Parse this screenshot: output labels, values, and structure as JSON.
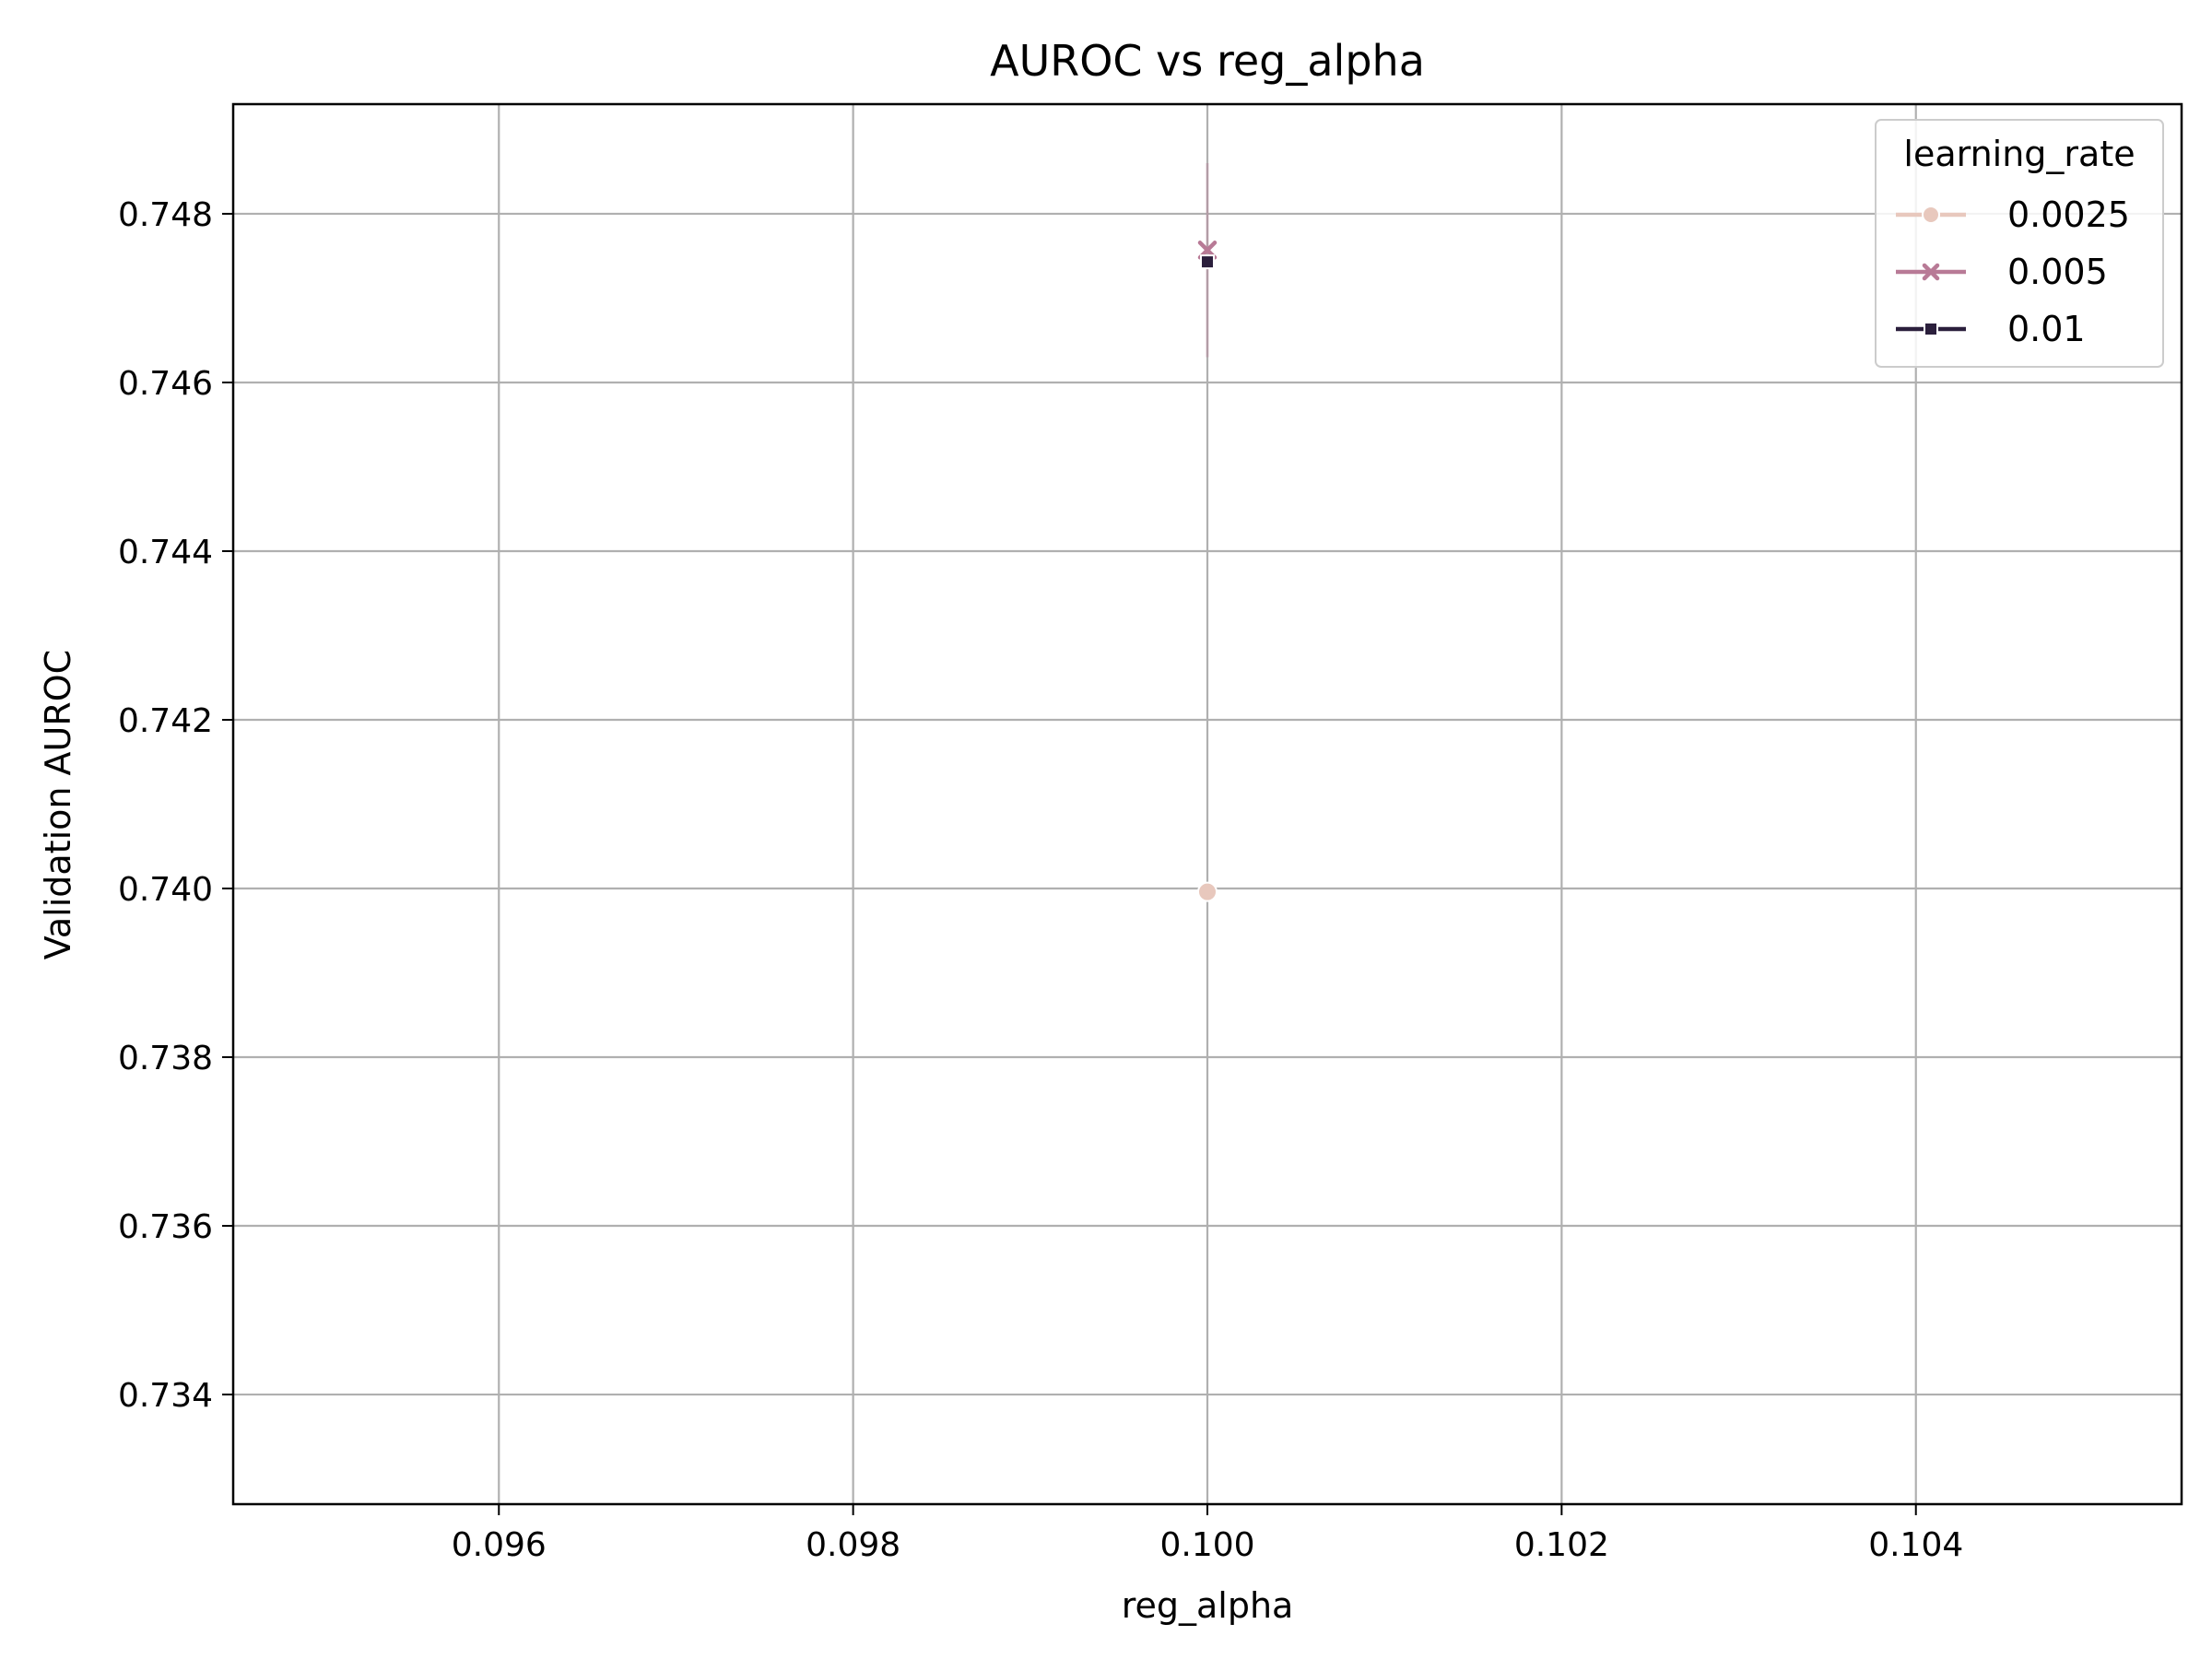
{
  "chart_data": {
    "type": "line",
    "title": "AUROC vs reg_alpha",
    "xlabel": "reg_alpha",
    "ylabel": "Validation AUROC",
    "xlim": [
      0.0945,
      0.1055
    ],
    "ylim": [
      0.7327,
      0.7493
    ],
    "xticks": [
      0.096,
      0.098,
      0.1,
      0.102,
      0.104
    ],
    "xtick_labels": [
      "0.096",
      "0.098",
      "0.100",
      "0.102",
      "0.104"
    ],
    "yticks": [
      0.734,
      0.736,
      0.738,
      0.74,
      0.742,
      0.744,
      0.746,
      0.748
    ],
    "ytick_labels": [
      "0.734",
      "0.736",
      "0.738",
      "0.740",
      "0.742",
      "0.744",
      "0.746",
      "0.748"
    ],
    "grid": true,
    "legend": {
      "title": "learning_rate",
      "placement": "top-right"
    },
    "series": [
      {
        "name": "0.0025",
        "color": "#e8c8bd",
        "marker": "circle",
        "x": [
          0.1
        ],
        "y": [
          0.73996
        ]
      },
      {
        "name": "0.005",
        "color": "#b87a96",
        "marker": "x",
        "x": [
          0.1
        ],
        "y": [
          0.74757
        ],
        "ci": [
          0.7463,
          0.7486
        ]
      },
      {
        "name": "0.01",
        "color": "#2b1f3c",
        "marker": "square",
        "x": [
          0.1
        ],
        "y": [
          0.74743
        ]
      }
    ]
  }
}
